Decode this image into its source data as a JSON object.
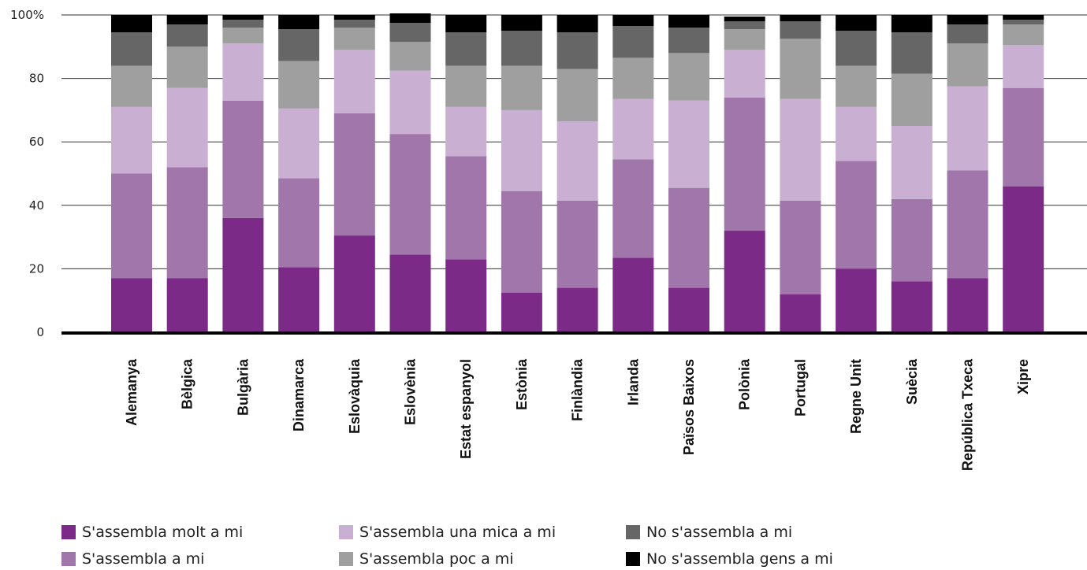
{
  "chart_data": {
    "type": "bar",
    "stacked": true,
    "percent_stacked": true,
    "ylim": [
      0,
      100
    ],
    "yticks": [
      0,
      20,
      40,
      60,
      80,
      100
    ],
    "ytick_labels": [
      "0",
      "20",
      "40",
      "60",
      "80",
      "100%"
    ],
    "grid": "horizontal",
    "legend_position": "bottom",
    "categories": [
      "Alemanya",
      "Bèlgica",
      "Bulgària",
      "Dinamarca",
      "Eslovàquia",
      "Eslovènia",
      "Estat espanyol",
      "Estònia",
      "Finlàndia",
      "Irlanda",
      "Països Baixos",
      "Polònia",
      "Portugal",
      "Regne Unit",
      "Suècia",
      "República Txeca",
      "Xipre"
    ],
    "series": [
      {
        "name": "S'assembla molt a mi",
        "color": "#7b2a87",
        "values": [
          17,
          17,
          36,
          20.5,
          30.5,
          24.5,
          23,
          12.5,
          14,
          23.5,
          14,
          32,
          12,
          20,
          16,
          17,
          46
        ]
      },
      {
        "name": "S'assembla a mi",
        "color": "#a176aa",
        "values": [
          33,
          35,
          37,
          28,
          38.5,
          38,
          32.5,
          32,
          27.5,
          31,
          31.5,
          42,
          29.5,
          34,
          26,
          34,
          31
        ]
      },
      {
        "name": "S'assembla una mica a mi",
        "color": "#c9b0d2",
        "values": [
          21,
          25,
          18,
          22,
          20,
          20,
          15.5,
          25.5,
          25,
          19,
          27.5,
          15,
          32,
          17,
          23,
          26.5,
          13.5
        ]
      },
      {
        "name": "S'assembla poc a mi",
        "color": "#9f9f9f",
        "values": [
          13,
          13,
          5,
          15,
          7,
          9,
          13,
          14,
          16.5,
          13,
          15,
          6.5,
          19,
          13,
          16.5,
          13.5,
          6.5
        ]
      },
      {
        "name": "No s'assembla a mi",
        "color": "#666666",
        "values": [
          10.5,
          7,
          2.5,
          10,
          2.5,
          6,
          10.5,
          11,
          11.5,
          10,
          8,
          2.5,
          5.5,
          11,
          13,
          6,
          1.5
        ]
      },
      {
        "name": "No s'assembla gens a mi",
        "color": "#000000",
        "values": [
          5.5,
          3,
          1.5,
          4.5,
          1.5,
          3,
          5.5,
          5,
          5.5,
          3.5,
          4,
          1.5,
          2,
          5,
          5.5,
          3,
          1.5
        ]
      }
    ]
  }
}
